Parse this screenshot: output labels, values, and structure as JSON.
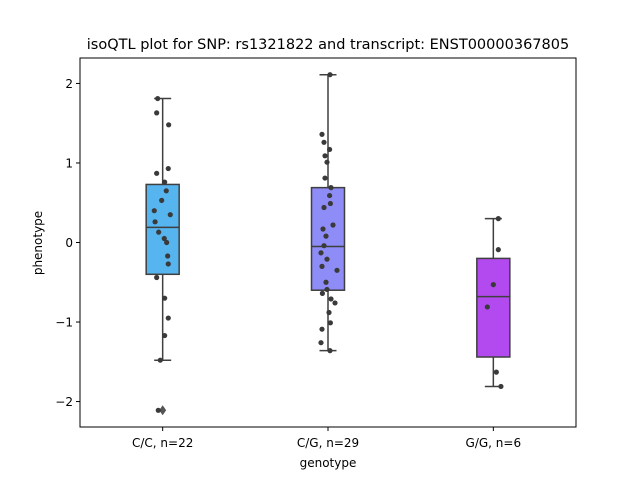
{
  "chart_data": {
    "type": "box",
    "title": "isoQTL plot for SNP: rs1321822 and transcript: ENST00000367805",
    "xlabel": "genotype",
    "ylabel": "phenotype",
    "ylim": [
      -2.32,
      2.32
    ],
    "yticks": [
      2,
      1,
      0,
      -1,
      -2
    ],
    "ytick_labels": [
      "2",
      "1",
      "0",
      "−1",
      "−2"
    ],
    "grid": false,
    "groups": [
      {
        "label": "C/C, n=22",
        "color": "#56b4ee",
        "q1": -0.4,
        "median": 0.19,
        "q3": 0.73,
        "whisker_low": -1.48,
        "whisker_high": 1.81,
        "outliers": [
          -2.11
        ],
        "points": [
          [
            -0.25,
            1.81
          ],
          [
            -0.3,
            1.63
          ],
          [
            0.3,
            1.48
          ],
          [
            0.28,
            0.93
          ],
          [
            -0.3,
            0.87
          ],
          [
            0.1,
            0.76
          ],
          [
            0.18,
            0.65
          ],
          [
            -0.05,
            0.53
          ],
          [
            -0.42,
            0.4
          ],
          [
            0.38,
            0.35
          ],
          [
            -0.38,
            0.26
          ],
          [
            -0.2,
            0.13
          ],
          [
            0.08,
            0.05
          ],
          [
            0.2,
            0.0
          ],
          [
            0.25,
            -0.17
          ],
          [
            0.28,
            -0.27
          ],
          [
            -0.3,
            -0.44
          ],
          [
            0.1,
            -0.7
          ],
          [
            0.28,
            -0.95
          ],
          [
            0.1,
            -1.17
          ],
          [
            -0.12,
            -1.48
          ],
          [
            -0.22,
            -2.11
          ]
        ]
      },
      {
        "label": "C/G, n=29",
        "color": "#8e8cf6",
        "q1": -0.6,
        "median": -0.05,
        "q3": 0.69,
        "whisker_low": -1.36,
        "whisker_high": 2.11,
        "outliers": [],
        "points": [
          [
            0.1,
            2.11
          ],
          [
            -0.3,
            1.36
          ],
          [
            -0.2,
            1.26
          ],
          [
            0.08,
            1.17
          ],
          [
            -0.15,
            1.09
          ],
          [
            -0.05,
            1.01
          ],
          [
            -0.15,
            0.81
          ],
          [
            0.15,
            0.69
          ],
          [
            0.08,
            0.59
          ],
          [
            0.12,
            0.49
          ],
          [
            -0.2,
            0.44
          ],
          [
            0.25,
            0.22
          ],
          [
            -0.25,
            0.17
          ],
          [
            -0.1,
            0.08
          ],
          [
            -0.2,
            -0.04
          ],
          [
            -0.35,
            -0.13
          ],
          [
            -0.05,
            -0.21
          ],
          [
            -0.3,
            -0.3
          ],
          [
            0.45,
            -0.35
          ],
          [
            -0.1,
            -0.5
          ],
          [
            -0.05,
            -0.59
          ],
          [
            -0.28,
            -0.64
          ],
          [
            0.15,
            -0.71
          ],
          [
            0.35,
            -0.76
          ],
          [
            0.05,
            -0.88
          ],
          [
            0.12,
            -1.01
          ],
          [
            -0.3,
            -1.09
          ],
          [
            -0.35,
            -1.26
          ],
          [
            0.1,
            -1.36
          ]
        ]
      },
      {
        "label": "G/G, n=6",
        "color": "#b34aef",
        "q1": -1.44,
        "median": -0.68,
        "q3": -0.2,
        "whisker_low": -1.81,
        "whisker_high": 0.3,
        "outliers": [],
        "points": [
          [
            0.25,
            0.3
          ],
          [
            0.25,
            -0.09
          ],
          [
            0.0,
            -0.53
          ],
          [
            -0.3,
            -0.81
          ],
          [
            0.15,
            -1.63
          ],
          [
            0.38,
            -1.81
          ]
        ]
      }
    ]
  }
}
